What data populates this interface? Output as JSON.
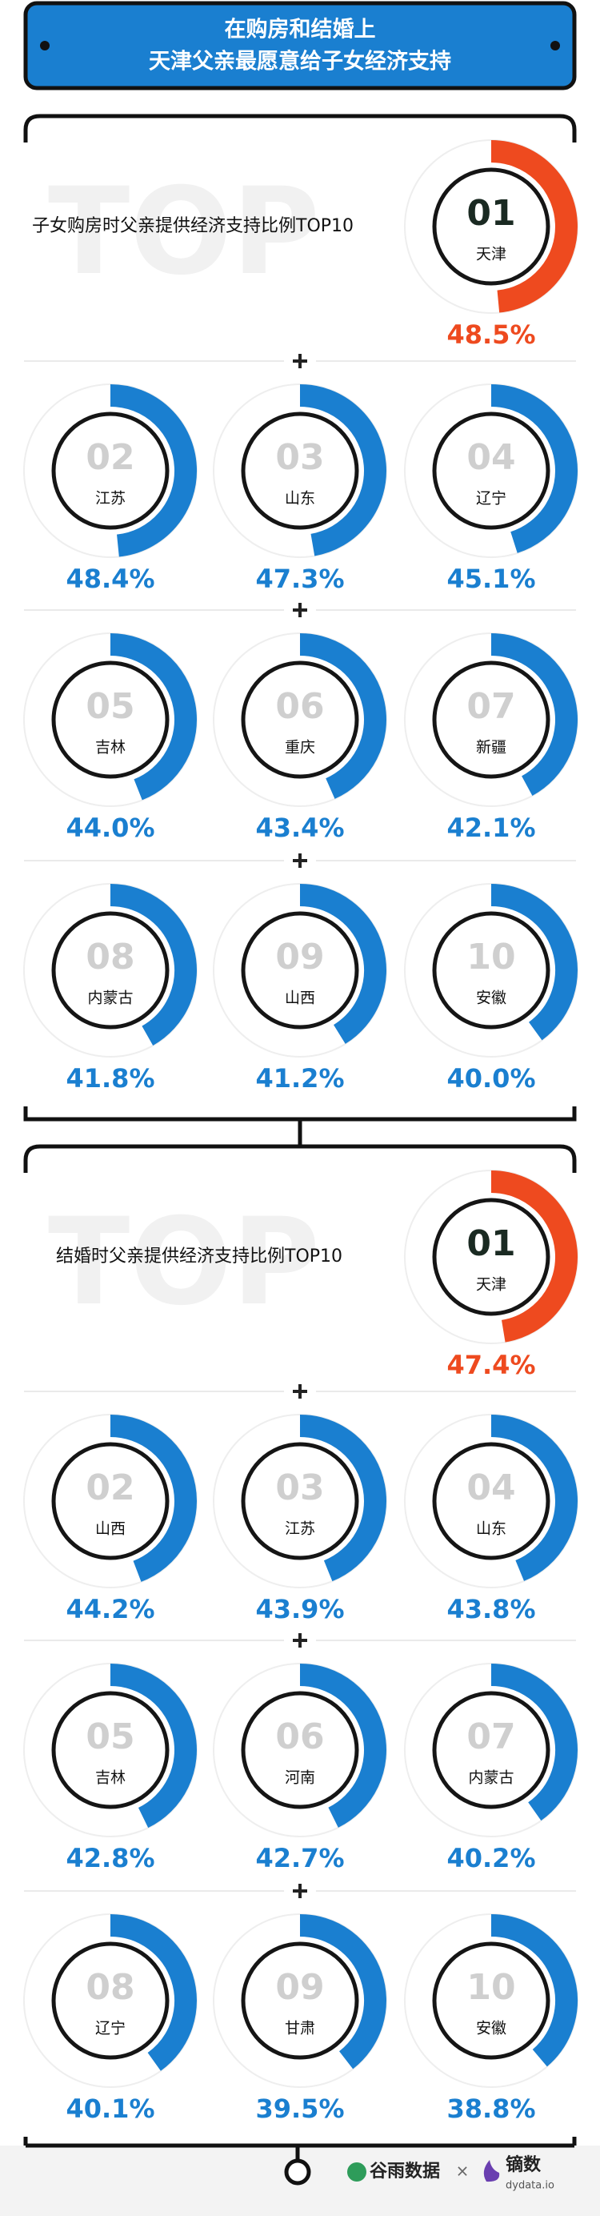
{
  "header": {
    "title_lines": [
      "在购房和结婚上",
      "天津父亲最愿意给子女经济支持"
    ]
  },
  "sections": [
    {
      "watermark": "TOP",
      "title": "子女购房时父亲提供经济支持比例TOP10",
      "items": [
        {
          "rank": "01",
          "region": "天津",
          "value": 48.5,
          "value_label": "48.5%"
        },
        {
          "rank": "02",
          "region": "江苏",
          "value": 48.4,
          "value_label": "48.4%"
        },
        {
          "rank": "03",
          "region": "山东",
          "value": 47.3,
          "value_label": "47.3%"
        },
        {
          "rank": "04",
          "region": "辽宁",
          "value": 45.1,
          "value_label": "45.1%"
        },
        {
          "rank": "05",
          "region": "吉林",
          "value": 44.0,
          "value_label": "44.0%"
        },
        {
          "rank": "06",
          "region": "重庆",
          "value": 43.4,
          "value_label": "43.4%"
        },
        {
          "rank": "07",
          "region": "新疆",
          "value": 42.1,
          "value_label": "42.1%"
        },
        {
          "rank": "08",
          "region": "内蒙古",
          "value": 41.8,
          "value_label": "41.8%"
        },
        {
          "rank": "09",
          "region": "山西",
          "value": 41.2,
          "value_label": "41.2%"
        },
        {
          "rank": "10",
          "region": "安徽",
          "value": 40.0,
          "value_label": "40.0%"
        }
      ]
    },
    {
      "watermark": "TOP",
      "title": "结婚时父亲提供经济支持比例TOP10",
      "items": [
        {
          "rank": "01",
          "region": "天津",
          "value": 47.4,
          "value_label": "47.4%"
        },
        {
          "rank": "02",
          "region": "山西",
          "value": 44.2,
          "value_label": "44.2%"
        },
        {
          "rank": "03",
          "region": "江苏",
          "value": 43.9,
          "value_label": "43.9%"
        },
        {
          "rank": "04",
          "region": "山东",
          "value": 43.8,
          "value_label": "43.8%"
        },
        {
          "rank": "05",
          "region": "吉林",
          "value": 42.8,
          "value_label": "42.8%"
        },
        {
          "rank": "06",
          "region": "河南",
          "value": 42.7,
          "value_label": "42.7%"
        },
        {
          "rank": "07",
          "region": "内蒙古",
          "value": 40.2,
          "value_label": "40.2%"
        },
        {
          "rank": "08",
          "region": "辽宁",
          "value": 40.1,
          "value_label": "40.1%"
        },
        {
          "rank": "09",
          "region": "甘肃",
          "value": 39.5,
          "value_label": "39.5%"
        },
        {
          "rank": "10",
          "region": "安徽",
          "value": 38.8,
          "value_label": "38.8%"
        }
      ]
    }
  ],
  "colors": {
    "top": "#ee4a1f",
    "rest": "#1a7fd0"
  },
  "footer": {
    "logo_left": "谷雨数据",
    "separator": "×",
    "logo_right": "镝数",
    "logo_right_sub": "dydata.io"
  }
}
